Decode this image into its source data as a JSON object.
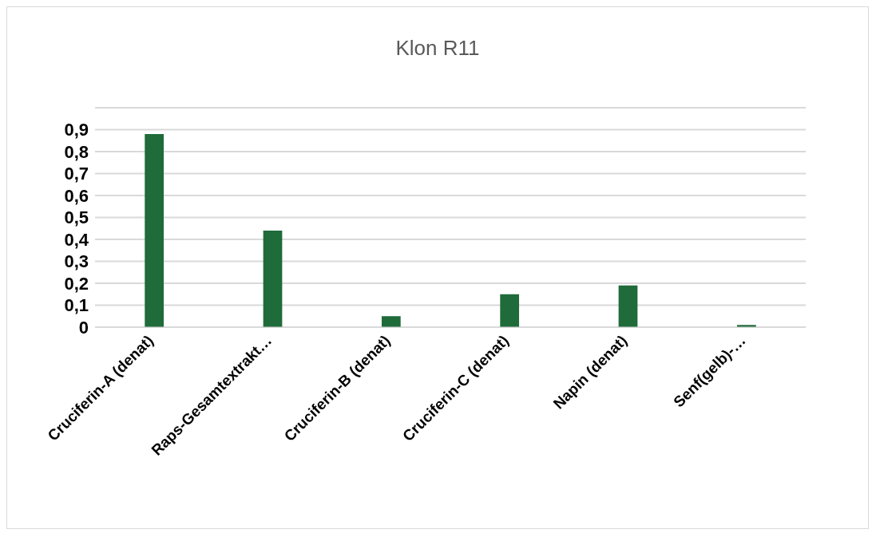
{
  "chart_data": {
    "type": "bar",
    "title": "Klon R11",
    "categories": [
      "Cruciferin-A (denat)",
      "Raps-Gesamtextrakt…",
      "Cruciferin-B (denat)",
      "Cruciferin-C (denat)",
      "Napin (denat)",
      "Senf(gelb)-…"
    ],
    "values": [
      0.88,
      0.44,
      0.05,
      0.15,
      0.19,
      0.01
    ],
    "color": "#1f6b3a",
    "ylim": [
      0,
      1
    ],
    "yticks": [
      {
        "value": 0,
        "label": "0"
      },
      {
        "value": 0.1,
        "label": "0,1"
      },
      {
        "value": 0.2,
        "label": "0,2"
      },
      {
        "value": 0.3,
        "label": "0,3"
      },
      {
        "value": 0.4,
        "label": "0,4"
      },
      {
        "value": 0.5,
        "label": "0,5"
      },
      {
        "value": 0.6,
        "label": "0,6"
      },
      {
        "value": 0.7,
        "label": "0,7"
      },
      {
        "value": 0.8,
        "label": "0,8"
      },
      {
        "value": 0.9,
        "label": "0,9"
      },
      {
        "value": 1,
        "label": null
      }
    ],
    "grid": "y"
  }
}
